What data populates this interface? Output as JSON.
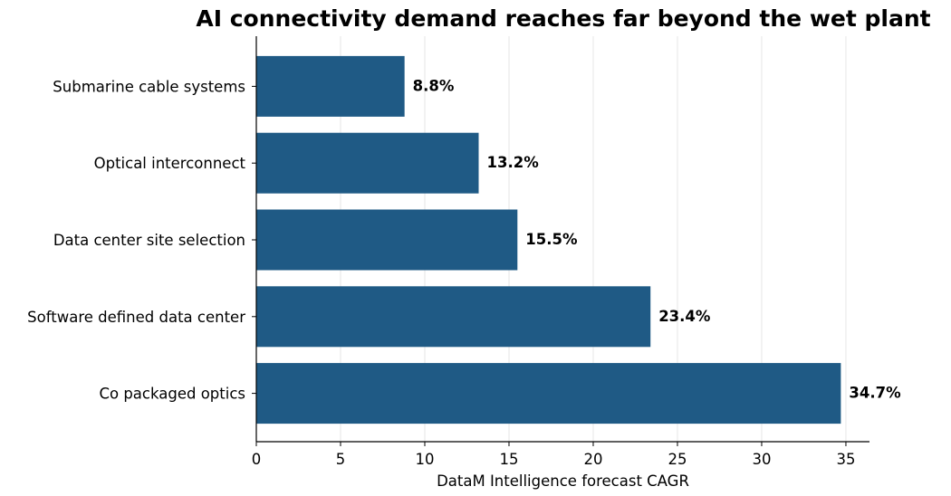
{
  "chart_data": {
    "type": "bar",
    "orientation": "horizontal",
    "title": "AI connectivity demand reaches far beyond the wet plant",
    "xlabel": "DataM Intelligence forecast CAGR",
    "ylabel": "",
    "categories": [
      "Submarine cable systems",
      "Optical interconnect",
      "Data center site selection",
      "Software defined data center",
      "Co packaged optics"
    ],
    "values": [
      8.8,
      13.2,
      15.5,
      23.4,
      34.7
    ],
    "value_labels": [
      "8.8%",
      "13.2%",
      "15.5%",
      "23.4%",
      "34.7%"
    ],
    "xlim": [
      0,
      36.4
    ],
    "xticks": [
      0,
      5,
      10,
      15,
      20,
      25,
      30,
      35
    ],
    "xtick_labels": [
      "0",
      "5",
      "10",
      "15",
      "20",
      "25",
      "30",
      "35"
    ],
    "grid": "vertical",
    "bar_color": "#1f5a85",
    "legend": "none"
  }
}
